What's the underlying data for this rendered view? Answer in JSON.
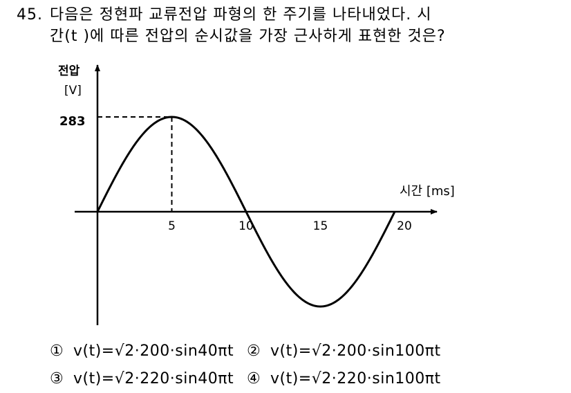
{
  "question": {
    "number": "45.",
    "line1": "다음은 정현파 교류전압 파형의 한 주기를 나타내었다. 시",
    "line2": "간(t )에 따른 전압의 순시값을 가장 근사하게 표현한 것은?"
  },
  "chart_data": {
    "type": "line",
    "ylabel": "전압",
    "yunit": "[V]",
    "xlabel": "시간 [ms]",
    "peak_label": "283",
    "x_ticks": [
      "5",
      "10",
      "15",
      "20"
    ],
    "x": [
      0,
      2.5,
      5,
      7.5,
      10,
      12.5,
      15,
      17.5,
      20
    ],
    "y": [
      0,
      200,
      283,
      200,
      0,
      -200,
      -283,
      -200,
      0
    ],
    "xlim": [
      0,
      23
    ],
    "ylim": [
      -290,
      290
    ],
    "peak": {
      "x": 5,
      "y": 283
    },
    "dashed_guides": true
  },
  "choices": [
    {
      "mark": "①",
      "text": "v(t)=√2·200·sin40πt"
    },
    {
      "mark": "②",
      "text": "v(t)=√2·200·sin100πt"
    },
    {
      "mark": "③",
      "text": "v(t)=√2·220·sin40πt"
    },
    {
      "mark": "④",
      "text": "v(t)=√2·220·sin100πt"
    }
  ]
}
